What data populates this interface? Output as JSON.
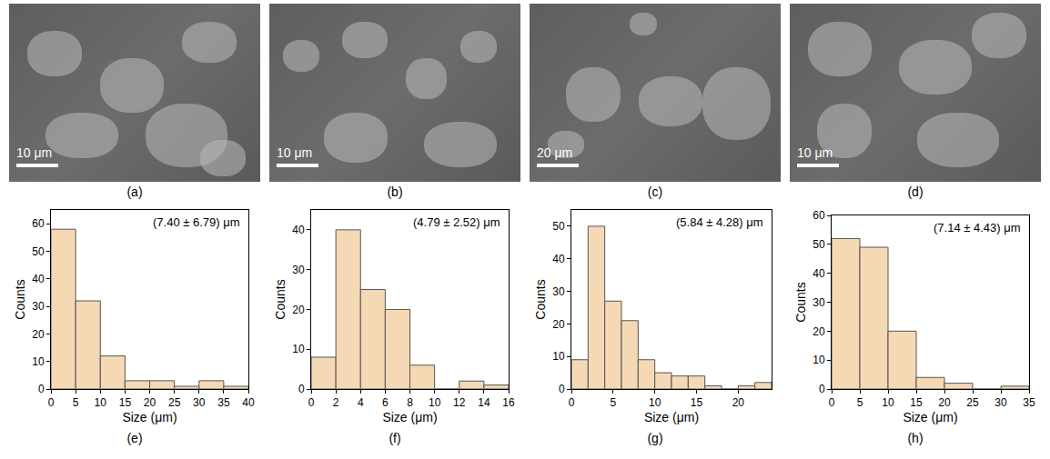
{
  "images": [
    {
      "label": "(a)",
      "scale_bar": "10 μm"
    },
    {
      "label": "(b)",
      "scale_bar": "10 μm"
    },
    {
      "label": "(c)",
      "scale_bar": "20 μm"
    },
    {
      "label": "(d)",
      "scale_bar": "10 μm"
    }
  ],
  "chart_data": [
    {
      "type": "histogram",
      "label": "(e)",
      "annotation": "(7.40 ± 6.79) μm",
      "x_label": "Size (μm)",
      "y_label": "Counts",
      "bins": [
        0,
        5,
        10,
        15,
        20,
        25,
        30,
        35,
        40
      ],
      "values": [
        58,
        32,
        12,
        3,
        3,
        1,
        3,
        1
      ],
      "color": "#f5d9b5",
      "xlim": [
        0,
        40
      ],
      "xticks": [
        0,
        5,
        10,
        15,
        20,
        25,
        30,
        35,
        40
      ],
      "ylim": [
        0,
        65
      ],
      "yticks": [
        0,
        10,
        20,
        30,
        40,
        50,
        60
      ]
    },
    {
      "type": "histogram",
      "label": "(f)",
      "annotation": "(4.79 ± 2.52) μm",
      "x_label": "Size (μm)",
      "y_label": "Counts",
      "bins": [
        0,
        2,
        4,
        6,
        8,
        10,
        12,
        14,
        16
      ],
      "values": [
        8,
        40,
        25,
        20,
        6,
        0,
        2,
        1
      ],
      "color": "#f5d9b5",
      "xlim": [
        0,
        16
      ],
      "xticks": [
        0,
        2,
        4,
        6,
        8,
        10,
        12,
        14,
        16
      ],
      "ylim": [
        0,
        45
      ],
      "yticks": [
        0,
        10,
        20,
        30,
        40
      ]
    },
    {
      "type": "histogram",
      "label": "(g)",
      "annotation": "(5.84 ± 4.28) μm",
      "x_label": "Size (μm)",
      "y_label": "Counts",
      "bins": [
        0,
        2,
        4,
        6,
        8,
        10,
        12,
        14,
        16,
        18,
        20,
        22,
        24
      ],
      "values": [
        9,
        50,
        27,
        21,
        9,
        5,
        4,
        4,
        1,
        0,
        1,
        2
      ],
      "color": "#f5d9b5",
      "xlim": [
        0,
        24
      ],
      "xticks": [
        0,
        5,
        10,
        15,
        20
      ],
      "ylim": [
        0,
        55
      ],
      "yticks": [
        0,
        10,
        20,
        30,
        40,
        50
      ]
    },
    {
      "type": "histogram",
      "label": "(h)",
      "annotation": "(7.14 ± 4.43) μm",
      "x_label": "Size (μm)",
      "y_label": "Counts",
      "bins": [
        0,
        5,
        10,
        15,
        20,
        25,
        30,
        35
      ],
      "values": [
        52,
        49,
        20,
        4,
        2,
        0,
        1
      ],
      "color": "#f5d9b5",
      "xlim": [
        0,
        35
      ],
      "xticks": [
        0,
        5,
        10,
        15,
        20,
        25,
        30,
        35
      ],
      "ylim": [
        0,
        60
      ],
      "yticks": [
        0,
        10,
        20,
        30,
        40,
        50,
        60
      ]
    }
  ]
}
